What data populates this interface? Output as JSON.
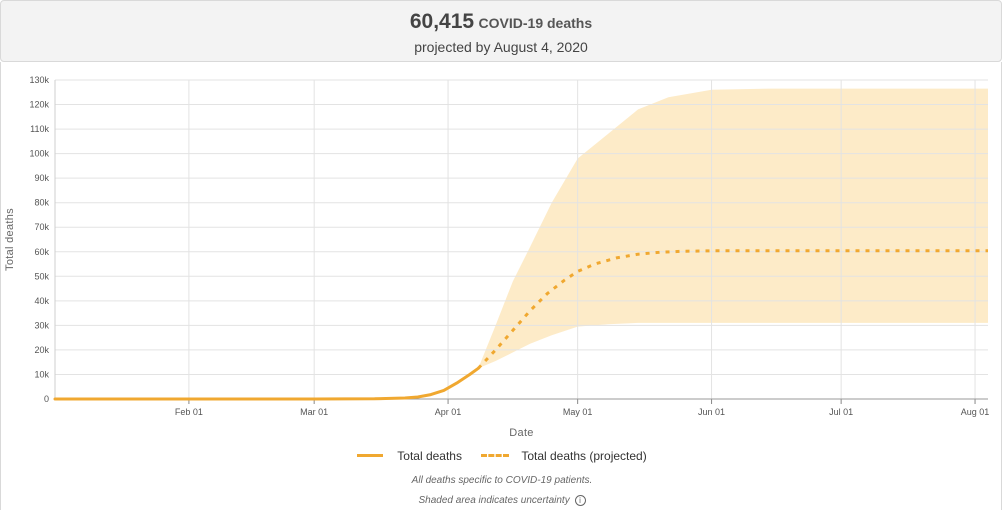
{
  "header": {
    "big_number": "60,415",
    "headline_label": "COVID-19 deaths",
    "subheadline": "projected by August 4, 2020"
  },
  "legend": {
    "actual_label": "Total deaths",
    "projected_label": "Total deaths (projected)"
  },
  "footnotes": {
    "line1": "All deaths specific to COVID-19 patients.",
    "line2": "Shaded area indicates uncertainty"
  },
  "colors": {
    "line": "#f0a830",
    "band": "#fdebc8",
    "grid": "#e3e3e3"
  },
  "chart_data": {
    "type": "line",
    "xlabel": "Date",
    "ylabel": "Total deaths",
    "x_range": [
      "2020-01-01",
      "2020-08-04"
    ],
    "ylim": [
      0,
      130000
    ],
    "y_ticks": [
      0,
      10000,
      20000,
      30000,
      40000,
      50000,
      60000,
      70000,
      80000,
      90000,
      100000,
      110000,
      120000,
      130000
    ],
    "y_tick_labels": [
      "0",
      "10k",
      "20k",
      "30k",
      "40k",
      "50k",
      "60k",
      "70k",
      "80k",
      "90k",
      "100k",
      "110k",
      "120k",
      "130k"
    ],
    "x_ticks": [
      "2020-02-01",
      "2020-03-01",
      "2020-04-01",
      "2020-05-01",
      "2020-06-01",
      "2020-07-01",
      "2020-08-01"
    ],
    "x_tick_labels": [
      "Feb 01",
      "Mar 01",
      "Apr 01",
      "May 01",
      "Jun 01",
      "Jul 01",
      "Aug 01"
    ],
    "grid": true,
    "legend_position": "bottom",
    "series": [
      {
        "name": "Total deaths",
        "style": "solid",
        "x": [
          "2020-01-01",
          "2020-02-01",
          "2020-03-01",
          "2020-03-15",
          "2020-03-22",
          "2020-03-25",
          "2020-03-28",
          "2020-03-31",
          "2020-04-03",
          "2020-04-06",
          "2020-04-08"
        ],
        "y": [
          0,
          0,
          0,
          100,
          400,
          800,
          1800,
          3500,
          6500,
          10000,
          12500
        ]
      },
      {
        "name": "Total deaths (projected)",
        "style": "dashed",
        "x": [
          "2020-04-08",
          "2020-04-12",
          "2020-04-16",
          "2020-04-20",
          "2020-04-24",
          "2020-04-28",
          "2020-05-01",
          "2020-05-05",
          "2020-05-10",
          "2020-05-15",
          "2020-05-20",
          "2020-05-25",
          "2020-06-01",
          "2020-06-15",
          "2020-07-01",
          "2020-08-04"
        ],
        "y": [
          12500,
          20000,
          28000,
          36000,
          43000,
          48500,
          52000,
          55000,
          57500,
          59000,
          59800,
          60200,
          60400,
          60400,
          60415,
          60415
        ]
      }
    ],
    "uncertainty_band": {
      "x": [
        "2020-04-08",
        "2020-04-12",
        "2020-04-16",
        "2020-04-20",
        "2020-04-25",
        "2020-05-01",
        "2020-05-08",
        "2020-05-15",
        "2020-05-22",
        "2020-06-01",
        "2020-06-15",
        "2020-08-04"
      ],
      "lower": [
        12500,
        15500,
        19000,
        22500,
        26000,
        29500,
        30500,
        31000,
        31000,
        31000,
        31000,
        31000
      ],
      "upper": [
        12500,
        30000,
        48000,
        62000,
        80000,
        98000,
        108000,
        118000,
        123000,
        126000,
        126500,
        126500
      ]
    }
  }
}
